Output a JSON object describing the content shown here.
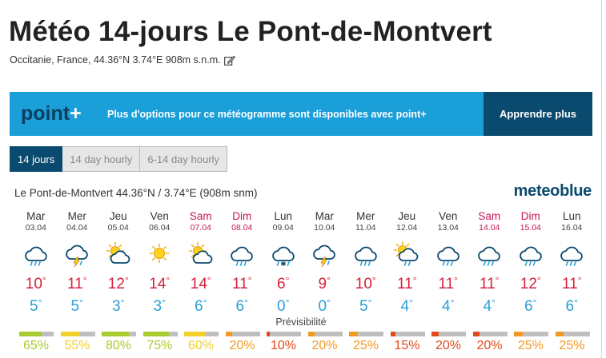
{
  "header": {
    "title": "Météo 14-jours Le Pont-de-Montvert",
    "subtitle": "Occitanie, France, 44.36°N 3.74°E 908m s.n.m."
  },
  "banner": {
    "logo_main": "point",
    "logo_plus": "+",
    "text": "Plus d'options pour ce météogramme sont disponibles avec point+",
    "button": "Apprendre plus"
  },
  "tabs": [
    {
      "label": "14 jours",
      "active": true
    },
    {
      "label": "14 day hourly",
      "active": false
    },
    {
      "label": "6-14 day hourly",
      "active": false
    }
  ],
  "forecast": {
    "location": "Le Pont-de-Montvert  44.36°N / 3.74°E (908m snm)",
    "brand": "meteoblue",
    "degree_symbol": "°",
    "predictability_label": "Prévisibilité",
    "days": [
      {
        "name": "Mar",
        "date": "03.04",
        "weekend": false,
        "icon": "cloud-rain-icon",
        "max": "10",
        "min": "5",
        "pred": "65%",
        "pred_level": 0.65,
        "pred_color": "#a8cc2e"
      },
      {
        "name": "Mer",
        "date": "04.04",
        "weekend": false,
        "icon": "thunderstorm-icon",
        "max": "11",
        "min": "5",
        "pred": "55%",
        "pred_level": 0.55,
        "pred_color": "#f2cf2a"
      },
      {
        "name": "Jeu",
        "date": "05.04",
        "weekend": false,
        "icon": "sun-cloud-icon",
        "max": "12",
        "min": "3",
        "pred": "80%",
        "pred_level": 0.8,
        "pred_color": "#a8cc2e"
      },
      {
        "name": "Ven",
        "date": "06.04",
        "weekend": false,
        "icon": "sun-icon",
        "max": "14",
        "min": "3",
        "pred": "75%",
        "pred_level": 0.75,
        "pred_color": "#a8cc2e"
      },
      {
        "name": "Sam",
        "date": "07.04",
        "weekend": true,
        "icon": "sun-cloud-icon",
        "max": "14",
        "min": "6",
        "pred": "60%",
        "pred_level": 0.6,
        "pred_color": "#f2cf2a"
      },
      {
        "name": "Dim",
        "date": "08.04",
        "weekend": true,
        "icon": "cloud-rain-icon",
        "max": "11",
        "min": "6",
        "pred": "20%",
        "pred_level": 0.2,
        "pred_color": "#f29a1f"
      },
      {
        "name": "Lun",
        "date": "09.04",
        "weekend": false,
        "icon": "cloud-snow-icon",
        "max": "6",
        "min": "0",
        "pred": "10%",
        "pred_level": 0.1,
        "pred_color": "#e04a1c"
      },
      {
        "name": "Mar",
        "date": "10.04",
        "weekend": false,
        "icon": "thunderstorm-icon",
        "max": "9",
        "min": "0",
        "pred": "20%",
        "pred_level": 0.2,
        "pred_color": "#f29a1f"
      },
      {
        "name": "Mer",
        "date": "11.04",
        "weekend": false,
        "icon": "cloud-rain-icon",
        "max": "10",
        "min": "5",
        "pred": "25%",
        "pred_level": 0.25,
        "pred_color": "#f29a1f"
      },
      {
        "name": "Jeu",
        "date": "12.04",
        "weekend": false,
        "icon": "sun-cloud-rain-icon",
        "max": "11",
        "min": "4",
        "pred": "15%",
        "pred_level": 0.15,
        "pred_color": "#e04a1c"
      },
      {
        "name": "Ven",
        "date": "13.04",
        "weekend": false,
        "icon": "cloud-rain-icon",
        "max": "11",
        "min": "4",
        "pred": "20%",
        "pred_level": 0.2,
        "pred_color": "#e04a1c"
      },
      {
        "name": "Sam",
        "date": "14.04",
        "weekend": true,
        "icon": "cloud-rain-icon",
        "max": "11",
        "min": "4",
        "pred": "20%",
        "pred_level": 0.2,
        "pred_color": "#e04a1c"
      },
      {
        "name": "Dim",
        "date": "15.04",
        "weekend": true,
        "icon": "cloud-rain-icon",
        "max": "12",
        "min": "6",
        "pred": "25%",
        "pred_level": 0.25,
        "pred_color": "#f29a1f"
      },
      {
        "name": "Lun",
        "date": "16.04",
        "weekend": false,
        "icon": "cloud-rain-icon",
        "max": "11",
        "min": "6",
        "pred": "25%",
        "pred_level": 0.25,
        "pred_color": "#f29a1f"
      }
    ]
  },
  "colors": {
    "banner_bg": "#1a9fd9",
    "banner_button_bg": "#0a4a6e",
    "tab_active_bg": "#0a4a6e",
    "max_temp": "#d6213c",
    "min_temp": "#2a9fd6",
    "weekend": "#c4145a"
  }
}
